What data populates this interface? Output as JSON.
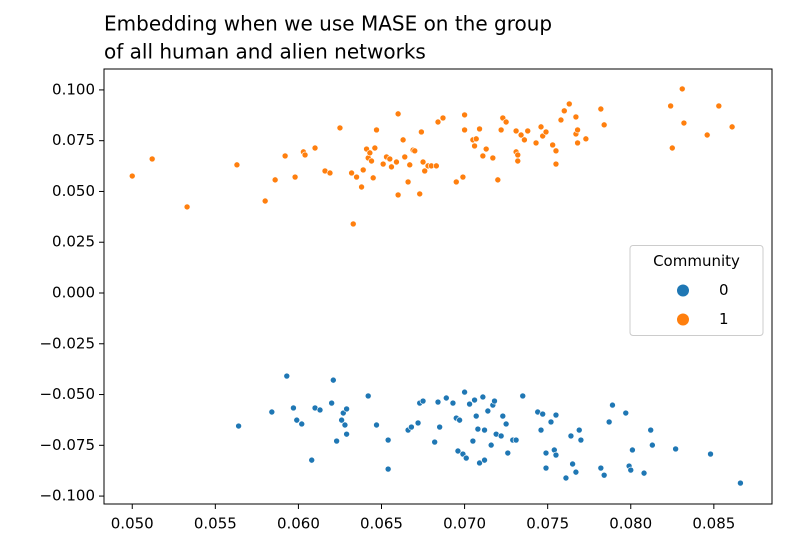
{
  "chart_data": {
    "type": "scatter",
    "title": [
      "Embedding when we use MASE on the group",
      "of all human and alien networks"
    ],
    "legend_title": "Community",
    "legend_position": "center right",
    "xlim": [
      0.0483,
      0.0885
    ],
    "ylim": [
      -0.1039,
      0.1103
    ],
    "xticks": [
      {
        "value": 0.05,
        "label": "0.050"
      },
      {
        "value": 0.055,
        "label": "0.055"
      },
      {
        "value": 0.06,
        "label": "0.060"
      },
      {
        "value": 0.065,
        "label": "0.065"
      },
      {
        "value": 0.07,
        "label": "0.070"
      },
      {
        "value": 0.075,
        "label": "0.075"
      },
      {
        "value": 0.08,
        "label": "0.080"
      },
      {
        "value": 0.085,
        "label": "0.085"
      }
    ],
    "yticks": [
      {
        "value": -0.1,
        "label": "−0.100"
      },
      {
        "value": -0.075,
        "label": "−0.075"
      },
      {
        "value": -0.05,
        "label": "−0.050"
      },
      {
        "value": -0.025,
        "label": "−0.025"
      },
      {
        "value": 0,
        "label": "0.000"
      },
      {
        "value": 0.025,
        "label": "0.025"
      },
      {
        "value": 0.05,
        "label": "0.050"
      },
      {
        "value": 0.075,
        "label": "0.075"
      },
      {
        "value": 0.1,
        "label": "0.100"
      }
    ],
    "series": [
      {
        "name": "0",
        "color": "#1f77b4",
        "x": [
          0.0564,
          0.0584,
          0.0593,
          0.0597,
          0.0599,
          0.0602,
          0.0608,
          0.061,
          0.0613,
          0.062,
          0.0621,
          0.0623,
          0.0626,
          0.0627,
          0.0628,
          0.0629,
          0.0629,
          0.0642,
          0.0647,
          0.0654,
          0.0654,
          0.0666,
          0.0668,
          0.0672,
          0.0673,
          0.0675,
          0.0682,
          0.0684,
          0.0685,
          0.0689,
          0.0693,
          0.0695,
          0.0696,
          0.0697,
          0.0699,
          0.07,
          0.0701,
          0.0703,
          0.0705,
          0.0706,
          0.0707,
          0.0708,
          0.0709,
          0.0711,
          0.0712,
          0.0712,
          0.0714,
          0.0716,
          0.0717,
          0.0718,
          0.0719,
          0.0722,
          0.0723,
          0.0725,
          0.0726,
          0.0729,
          0.0731,
          0.0735,
          0.0744,
          0.0746,
          0.0747,
          0.0749,
          0.0749,
          0.0752,
          0.0754,
          0.0755,
          0.0755,
          0.0761,
          0.0764,
          0.0765,
          0.0767,
          0.0769,
          0.077,
          0.0782,
          0.0784,
          0.0787,
          0.0789,
          0.0797,
          0.0799,
          0.08,
          0.0801,
          0.0808,
          0.0812,
          0.0813,
          0.0827,
          0.0848,
          0.0866
        ],
        "values": [
          -0.0655,
          -0.0586,
          -0.0409,
          -0.0566,
          -0.0626,
          -0.0645,
          -0.0823,
          -0.0566,
          -0.0576,
          -0.0542,
          -0.0429,
          -0.0729,
          -0.0626,
          -0.0591,
          -0.065,
          -0.0695,
          -0.0571,
          -0.0507,
          -0.065,
          -0.0867,
          -0.0724,
          -0.0675,
          -0.066,
          -0.064,
          -0.0542,
          -0.0532,
          -0.0734,
          -0.0537,
          -0.066,
          -0.0517,
          -0.0542,
          -0.0616,
          -0.0778,
          -0.0626,
          -0.0793,
          -0.0488,
          -0.0813,
          -0.0547,
          -0.0729,
          -0.0527,
          -0.0606,
          -0.067,
          -0.0837,
          -0.0512,
          -0.0675,
          -0.0823,
          -0.0581,
          -0.0749,
          -0.0552,
          -0.0532,
          -0.0695,
          -0.0704,
          -0.0606,
          -0.0645,
          -0.0788,
          -0.0724,
          -0.0724,
          -0.0507,
          -0.0586,
          -0.0675,
          -0.0596,
          -0.0788,
          -0.0862,
          -0.0635,
          -0.0773,
          -0.0798,
          -0.0601,
          -0.0911,
          -0.0704,
          -0.0842,
          -0.0882,
          -0.0675,
          -0.0724,
          -0.0862,
          -0.0897,
          -0.0635,
          -0.0552,
          -0.0591,
          -0.0852,
          -0.0872,
          -0.0773,
          -0.0887,
          -0.0675,
          -0.0749,
          -0.0768,
          -0.0793,
          -0.0936
        ]
      },
      {
        "name": "1",
        "color": "#ff7f0e",
        "x": [
          0.05,
          0.0512,
          0.0533,
          0.0563,
          0.058,
          0.0586,
          0.0592,
          0.0598,
          0.0603,
          0.0604,
          0.061,
          0.0616,
          0.0619,
          0.0625,
          0.0633,
          0.0632,
          0.0635,
          0.0639,
          0.0638,
          0.0641,
          0.0642,
          0.0643,
          0.0644,
          0.0645,
          0.0647,
          0.0646,
          0.0651,
          0.0653,
          0.0655,
          0.0656,
          0.066,
          0.0659,
          0.066,
          0.0663,
          0.0664,
          0.0666,
          0.0667,
          0.0669,
          0.067,
          0.0673,
          0.0674,
          0.0675,
          0.0676,
          0.0678,
          0.068,
          0.0683,
          0.0684,
          0.0687,
          0.0695,
          0.0699,
          0.07,
          0.07,
          0.0705,
          0.0706,
          0.0707,
          0.0709,
          0.0711,
          0.0713,
          0.0717,
          0.072,
          0.0722,
          0.0723,
          0.0725,
          0.0731,
          0.0731,
          0.0732,
          0.0732,
          0.0734,
          0.0736,
          0.0738,
          0.0743,
          0.0746,
          0.0747,
          0.0749,
          0.0753,
          0.0755,
          0.0755,
          0.0758,
          0.076,
          0.0763,
          0.0767,
          0.0767,
          0.0768,
          0.0768,
          0.0773,
          0.0782,
          0.0784,
          0.0824,
          0.0825,
          0.0831,
          0.0832,
          0.0846,
          0.0853,
          0.0861
        ],
        "values": [
          0.0576,
          0.066,
          0.0424,
          0.0631,
          0.0453,
          0.0557,
          0.0675,
          0.0571,
          0.0695,
          0.068,
          0.0714,
          0.0601,
          0.0591,
          0.0813,
          0.034,
          0.0591,
          0.0571,
          0.0606,
          0.0522,
          0.0709,
          0.0665,
          0.069,
          0.065,
          0.0567,
          0.0803,
          0.0714,
          0.0635,
          0.067,
          0.066,
          0.0621,
          0.0882,
          0.0645,
          0.0483,
          0.0754,
          0.067,
          0.0547,
          0.0631,
          0.0704,
          0.07,
          0.0488,
          0.0793,
          0.0645,
          0.0601,
          0.0626,
          0.0626,
          0.0626,
          0.0842,
          0.0862,
          0.0547,
          0.0571,
          0.0877,
          0.0803,
          0.0754,
          0.0724,
          0.0759,
          0.0808,
          0.0675,
          0.0709,
          0.0665,
          0.0557,
          0.0803,
          0.0862,
          0.0842,
          0.0798,
          0.0695,
          0.065,
          0.068,
          0.0778,
          0.0754,
          0.0798,
          0.0739,
          0.0818,
          0.0773,
          0.0793,
          0.0729,
          0.0635,
          0.07,
          0.0852,
          0.0897,
          0.0931,
          0.0783,
          0.0867,
          0.0739,
          0.0803,
          0.0759,
          0.0906,
          0.0828,
          0.0921,
          0.0714,
          0.1005,
          0.0837,
          0.0778,
          0.0921,
          0.0818
        ]
      }
    ]
  }
}
